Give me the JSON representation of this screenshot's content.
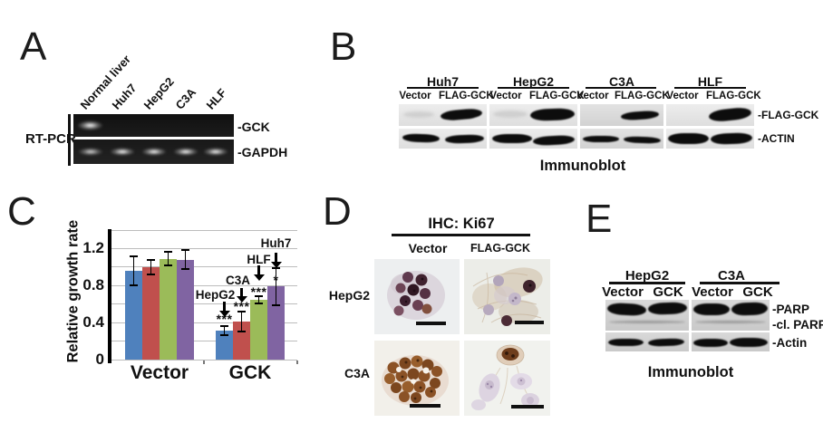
{
  "panels": {
    "a": {
      "label": "A",
      "assay": "RT-PCR",
      "lanes": [
        "Normal liver",
        "Huh7",
        "HepG2",
        "C3A",
        "HLF"
      ],
      "bands": [
        "-GCK",
        "-GAPDH"
      ]
    },
    "b": {
      "label": "B",
      "groups": [
        "Huh7",
        "HepG2",
        "C3A",
        "HLF"
      ],
      "lanes": [
        "Vector",
        "FLAG-GCK"
      ],
      "bands": [
        "-FLAG-GCK",
        "-ACTIN"
      ],
      "caption": "Immunoblot"
    },
    "c": {
      "label": "C"
    },
    "d": {
      "label": "D",
      "title": "IHC: Ki67",
      "columns": [
        "Vector",
        "FLAG-GCK"
      ],
      "rows": [
        "HepG2",
        "C3A"
      ]
    },
    "e": {
      "label": "E",
      "groups": [
        "HepG2",
        "C3A"
      ],
      "lanes": [
        "Vector",
        "GCK"
      ],
      "bands": [
        "-PARP",
        "-cl. PARP",
        "-Actin"
      ],
      "caption": "Immunoblot"
    }
  },
  "chart_data": {
    "type": "bar",
    "title": "",
    "xlabel": "",
    "ylabel": "Relative growth rate",
    "categories": [
      "Vector",
      "GCK"
    ],
    "series": [
      {
        "name": "HepG2",
        "color": "#4f81bd",
        "values": [
          0.96,
          0.31
        ],
        "errors": [
          0.17,
          0.06
        ]
      },
      {
        "name": "C3A",
        "color": "#c0504d",
        "values": [
          1.0,
          0.41
        ],
        "errors": [
          0.09,
          0.12
        ]
      },
      {
        "name": "HLF",
        "color": "#9bbb59",
        "values": [
          1.09,
          0.65
        ],
        "errors": [
          0.08,
          0.05
        ]
      },
      {
        "name": "Huh7",
        "color": "#8064a2",
        "values": [
          1.08,
          0.79
        ],
        "errors": [
          0.11,
          0.21
        ]
      }
    ],
    "yticks": [
      0,
      0.4,
      0.8,
      1.2
    ],
    "ylim": [
      0,
      1.4
    ],
    "grid_step": 0.2,
    "grid": true,
    "legend_position": "none",
    "annotations": [
      {
        "series": "HepG2",
        "category": "GCK",
        "stars": "***",
        "label": "HepG2",
        "stars_y": 0.44,
        "arrow_y": [
          0.46,
          0.63
        ],
        "label_y": 0.7,
        "dx": -10
      },
      {
        "series": "C3A",
        "category": "GCK",
        "stars": "***",
        "label": "C3A",
        "stars_y": 0.58,
        "arrow_y": [
          0.62,
          0.77
        ],
        "label_y": 0.85,
        "dx": -4
      },
      {
        "series": "HLF",
        "category": "GCK",
        "stars": "***",
        "label": "HLF",
        "stars_y": 0.73,
        "arrow_y": [
          0.85,
          1.02
        ],
        "label_y": 1.08,
        "dx": 0
      },
      {
        "series": "Huh7",
        "category": "GCK",
        "stars": "*",
        "label": "Huh7",
        "stars_y": 0.86,
        "arrow_y": [
          0.99,
          1.16
        ],
        "label_y": 1.25,
        "dx": 0
      }
    ]
  }
}
